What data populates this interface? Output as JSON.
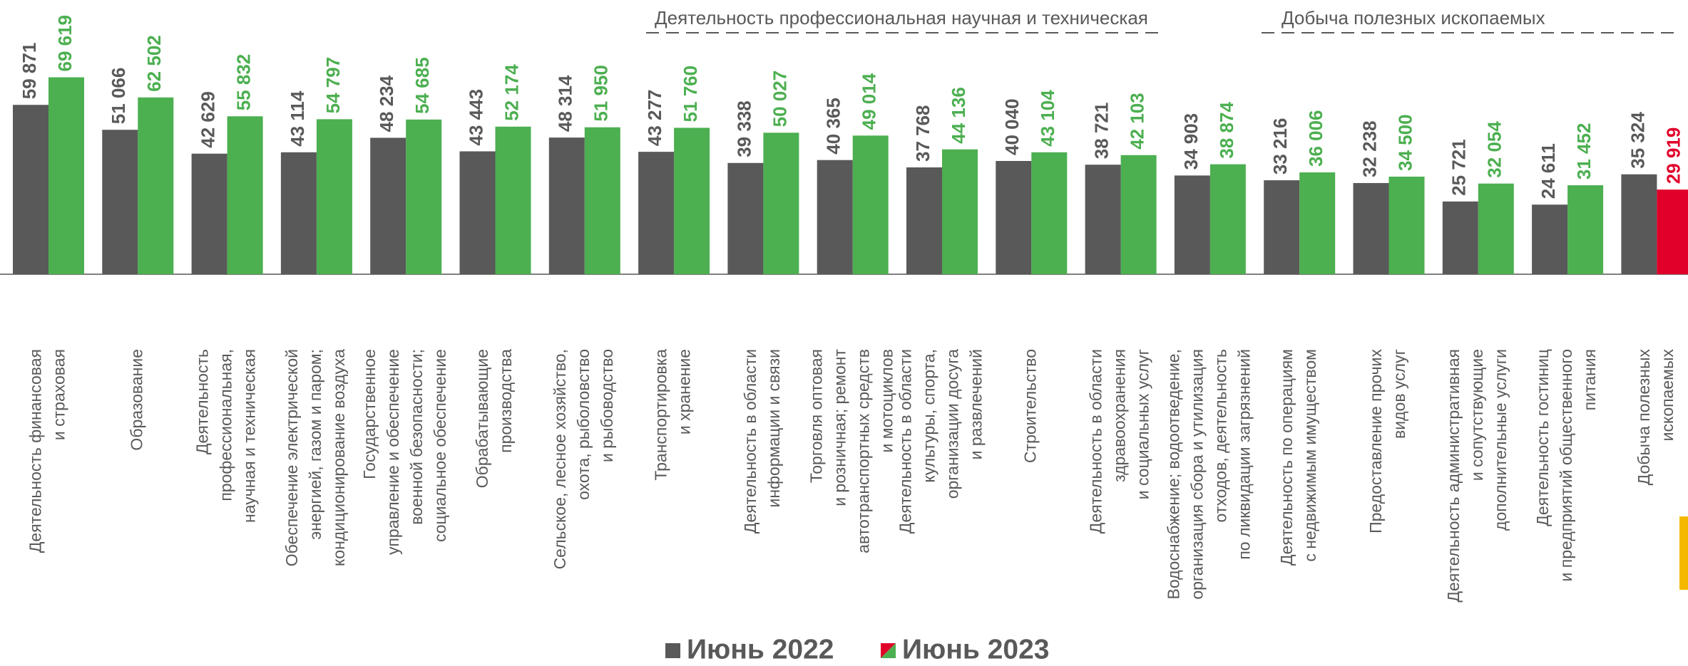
{
  "chart_data": {
    "type": "bar",
    "categories": [
      [
        "Деятельность финансовая",
        "и страховая"
      ],
      [
        "Образование"
      ],
      [
        "Деятельность",
        "профессиональная,",
        "научная и техническая"
      ],
      [
        "Обеспечение электрической",
        "энергией, газом и паром;",
        "кондиционирование воздуха"
      ],
      [
        "Государственное",
        "управление и обеспечение",
        "военной безопасности;",
        "социальное обеспечение"
      ],
      [
        "Обрабатывающие",
        "производства"
      ],
      [
        "Сельское, лесное хозяйство,",
        "охота, рыболовство",
        "и рыбоводство"
      ],
      [
        "Транспортировка",
        "и хранение"
      ],
      [
        "Деятельность в области",
        "информации и связи"
      ],
      [
        "Торговля оптовая",
        "и розничная; ремонт",
        "автотранспортных средств",
        "и мотоциклов"
      ],
      [
        "Деятельность в области",
        "культуры, спорта,",
        "организации досуга",
        "и развлечений"
      ],
      [
        "Строительство"
      ],
      [
        "Деятельность в области",
        "здравоохранения",
        "и социальных услуг"
      ],
      [
        "Водоснабжение; водоотведение,",
        "организация сбора и утилизация",
        "отходов, деятельность",
        "по ликвидации загрязнений"
      ],
      [
        "Деятельность по операциям",
        "с недвижимым имуществом"
      ],
      [
        "Предоставление прочих",
        "видов услуг"
      ],
      [
        "Деятельность административная",
        "и сопутствующие",
        "дополнительные услуги"
      ],
      [
        "Деятельность гостиниц",
        "и предприятий общественного",
        "питания"
      ],
      [
        "Добыча полезных",
        "ископаемых"
      ]
    ],
    "series": [
      {
        "name": "Июнь 2022",
        "color": "#595959",
        "values": [
          59871,
          51066,
          42629,
          43114,
          48234,
          43443,
          48314,
          43277,
          39338,
          40365,
          37768,
          40040,
          38721,
          34903,
          33216,
          32238,
          25721,
          24611,
          35324
        ],
        "value_labels": [
          "59 871",
          "51 066",
          "42 629",
          "43 114",
          "48 234",
          "43 443",
          "48 314",
          "43 277",
          "39 338",
          "40 365",
          "37 768",
          "40 040",
          "38 721",
          "34 903",
          "33 216",
          "32 238",
          "25 721",
          "24 611",
          "35 324"
        ]
      },
      {
        "name": "Июнь 2023",
        "color": "#4caf50",
        "colors": [
          "#4caf50",
          "#4caf50",
          "#4caf50",
          "#4caf50",
          "#4caf50",
          "#4caf50",
          "#4caf50",
          "#4caf50",
          "#4caf50",
          "#4caf50",
          "#4caf50",
          "#4caf50",
          "#4caf50",
          "#4caf50",
          "#4caf50",
          "#4caf50",
          "#4caf50",
          "#4caf50",
          "#e0002a"
        ],
        "values": [
          69619,
          62502,
          55832,
          54797,
          54685,
          52174,
          51950,
          51760,
          50027,
          49014,
          44136,
          43104,
          42103,
          38874,
          36006,
          34500,
          32054,
          31452,
          29919
        ],
        "value_labels": [
          "69 619",
          "62 502",
          "55 832",
          "54 797",
          "54 685",
          "52 174",
          "51 950",
          "51 760",
          "50 027",
          "49 014",
          "44 136",
          "43 104",
          "42 103",
          "38 874",
          "36 006",
          "34 500",
          "32 054",
          "31 452",
          "29 919"
        ]
      }
    ],
    "annotations": [
      {
        "text": "Деятельность профессиональная научная и техническая"
      },
      {
        "text": "Добыча полезных ископаемых"
      }
    ],
    "ylim": [
      0,
      70000
    ],
    "legend": "bottom"
  }
}
